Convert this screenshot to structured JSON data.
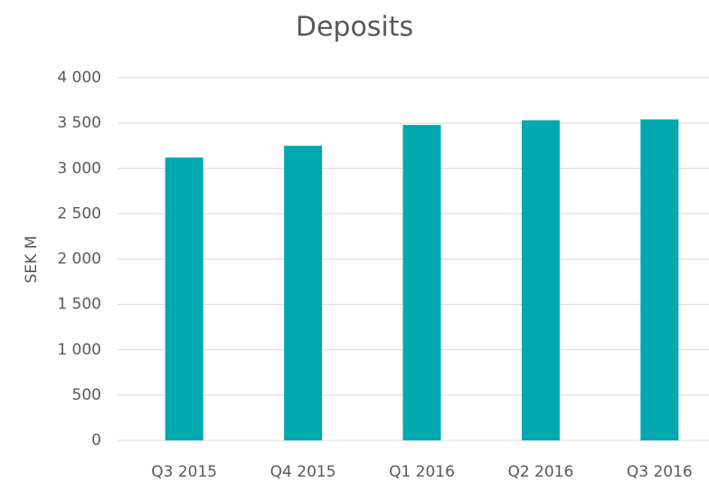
{
  "chart_data": {
    "type": "bar",
    "title": "Deposits",
    "ylabel": "SEK M",
    "categories": [
      "Q3 2015",
      "Q4 2015",
      "Q1 2016",
      "Q2 2016",
      "Q3 2016"
    ],
    "values": [
      3120,
      3250,
      3480,
      3530,
      3540
    ],
    "color": "#00a8b0",
    "ylim": [
      0,
      4000
    ],
    "yticks": [
      0,
      500,
      {
        "value": 1000,
        "label": "1 000"
      },
      {
        "value": 1500,
        "label": "1 500"
      },
      {
        "value": 2000,
        "label": "2 000"
      },
      {
        "value": 2500,
        "label": "2 500"
      },
      {
        "value": 3000,
        "label": "3 000"
      },
      {
        "value": 3500,
        "label": "3 500"
      },
      {
        "value": 4000,
        "label": "4 000"
      }
    ],
    "grid": true
  }
}
